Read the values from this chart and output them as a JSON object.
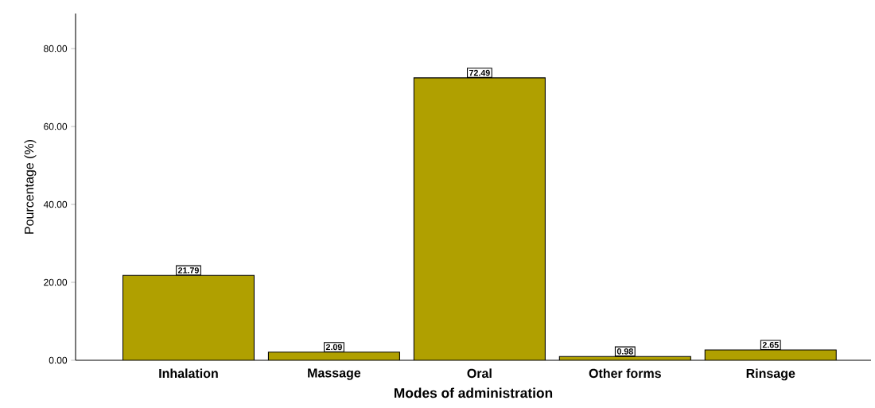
{
  "chart_data": {
    "type": "bar",
    "xlabel": "Modes of administration",
    "ylabel": "Pourcentage (%)",
    "categories": [
      "Inhalation",
      "Massage",
      "Oral",
      "Other forms",
      "Rinsage"
    ],
    "values": [
      21.79,
      2.09,
      72.49,
      0.98,
      2.65
    ],
    "color": "#b0a000",
    "ylim": [
      0,
      89
    ],
    "yticks": [
      {
        "value": 0,
        "label": "0.00"
      },
      {
        "value": 20,
        "label": "20.00"
      },
      {
        "value": 40,
        "label": "40.00"
      },
      {
        "value": 60,
        "label": "60.00"
      },
      {
        "value": 80,
        "label": "80.00"
      }
    ],
    "data_labels": true
  }
}
